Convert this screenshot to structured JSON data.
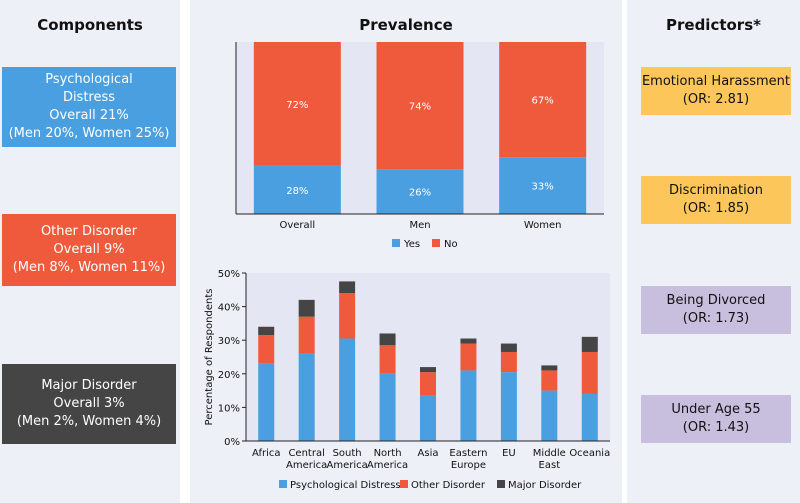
{
  "headers": {
    "components": "Components",
    "prevalence": "Prevalence",
    "predictors": "Predictors*"
  },
  "components": [
    {
      "lines": [
        "Psychological",
        "Distress",
        "Overall 21%",
        "(Men 20%, Women 25%)"
      ],
      "color": "#4a9fe0"
    },
    {
      "lines": [
        "Other Disorder",
        "Overall 9%",
        "(Men 8%, Women 11%)"
      ],
      "color": "#f05a3c"
    },
    {
      "lines": [
        "Major Disorder",
        "Overall 3%",
        "(Men 2%, Women 4%)"
      ],
      "color": "#454545"
    }
  ],
  "predictors": [
    {
      "name": "Emotional Harassment",
      "or": "(OR: 2.81)",
      "color": "#fdc65a"
    },
    {
      "name": "Discrimination",
      "or": "(OR: 1.85)",
      "color": "#fdc65a"
    },
    {
      "name": "Being Divorced",
      "or": "(OR: 1.73)",
      "color": "#c8bedd"
    },
    {
      "name": "Under Age 55",
      "or": "(OR: 1.43)",
      "color": "#c8bedd"
    }
  ],
  "chart_data": [
    {
      "type": "bar",
      "stacked": true,
      "categories": [
        "Overall",
        "Men",
        "Women"
      ],
      "series": [
        {
          "name": "Yes",
          "values": [
            28,
            26,
            33
          ],
          "labels": [
            "28%",
            "26%",
            "33%"
          ],
          "color": "#4a9fe0"
        },
        {
          "name": "No",
          "values": [
            72,
            74,
            67
          ],
          "labels": [
            "72%",
            "74%",
            "67%"
          ],
          "color": "#f05a3c"
        }
      ],
      "ylim": [
        0,
        100
      ],
      "legend": "bottom"
    },
    {
      "type": "bar",
      "stacked": true,
      "categories": [
        "Africa",
        "Central America",
        "South America",
        "North America",
        "Asia",
        "Eastern Europe",
        "EU",
        "Middle East",
        "Oceania"
      ],
      "category_lines": [
        [
          "Africa"
        ],
        [
          "Central",
          "America"
        ],
        [
          "South",
          "America"
        ],
        [
          "North",
          "America"
        ],
        [
          "Asia"
        ],
        [
          "Eastern",
          "Europe"
        ],
        [
          "EU"
        ],
        [
          "Middle",
          "East"
        ],
        [
          "Oceania"
        ]
      ],
      "series": [
        {
          "name": "Psychological Distress",
          "values": [
            23,
            26,
            30.5,
            20,
            13.5,
            21,
            20.5,
            15,
            14
          ],
          "color": "#4a9fe0"
        },
        {
          "name": "Other Disorder",
          "values": [
            8.5,
            11,
            13.5,
            8.5,
            7,
            8,
            6,
            6,
            12.5
          ],
          "color": "#f05a3c"
        },
        {
          "name": "Major Disorder",
          "values": [
            2.5,
            5,
            3.5,
            3.5,
            1.5,
            1.5,
            2.5,
            1.5,
            4.5
          ],
          "color": "#454545"
        }
      ],
      "ylabel": "Percentage of Respondents",
      "yticks": [
        "0%",
        "10%",
        "20%",
        "30%",
        "40%",
        "50%"
      ],
      "ylim": [
        0,
        50
      ],
      "legend": "bottom"
    }
  ]
}
